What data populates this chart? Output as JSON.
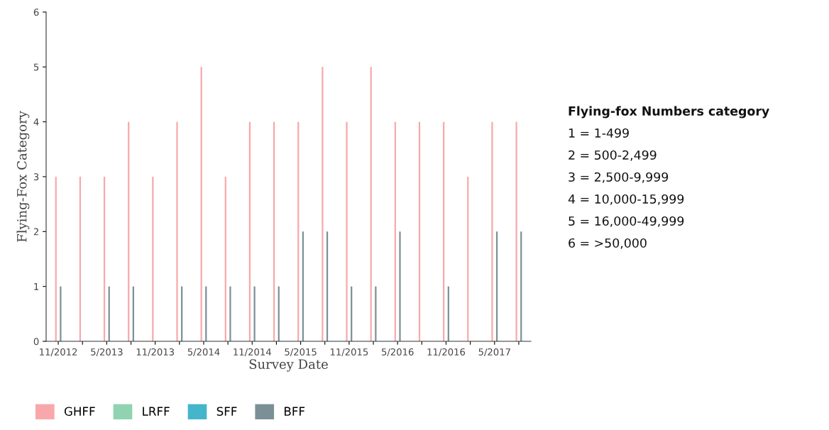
{
  "chart_data": {
    "type": "bar",
    "xlabel": "Survey Date",
    "ylabel": "Flying-Fox Category",
    "categories": [
      "11/2012",
      null,
      "5/2013",
      null,
      "11/2013",
      null,
      "5/2014",
      null,
      "11/2014",
      null,
      "5/2015",
      null,
      "11/2015",
      null,
      "5/2016",
      null,
      "11/2016",
      null,
      "5/2017",
      null
    ],
    "series": [
      {
        "name": "GHFF",
        "color": "#f8a8aa",
        "values": [
          3,
          3,
          3,
          4,
          3,
          4,
          5,
          3,
          4,
          4,
          4,
          5,
          4,
          5,
          4,
          4,
          4,
          3,
          4,
          4
        ]
      },
      {
        "name": "LRFF",
        "color": "#8fd3b0",
        "values": [
          null,
          null,
          null,
          null,
          null,
          null,
          null,
          null,
          null,
          null,
          null,
          null,
          null,
          null,
          null,
          null,
          null,
          null,
          null,
          null
        ]
      },
      {
        "name": "SFF",
        "color": "#45b5cc",
        "values": [
          null,
          null,
          null,
          null,
          null,
          null,
          null,
          null,
          null,
          null,
          null,
          null,
          null,
          null,
          null,
          null,
          null,
          null,
          null,
          null
        ]
      },
      {
        "name": "BFF",
        "color": "#7a9096",
        "values": [
          1,
          0,
          1,
          1,
          0,
          1,
          1,
          1,
          1,
          1,
          2,
          2,
          1,
          1,
          2,
          0,
          1,
          0,
          2,
          2
        ]
      }
    ],
    "ylim": [
      0,
      6
    ],
    "yticks": [
      0,
      1,
      2,
      3,
      4,
      5,
      6
    ],
    "grid": false,
    "legend": "bottom",
    "annotations": [
      "Flying-fox Numbers category",
      "1 = 1-499",
      "2 = 500-2,499",
      "3 = 2,500-9,999",
      "4 = 10,000-15,999",
      "5 = 16,000-49,999",
      "6 = >50,000"
    ]
  }
}
